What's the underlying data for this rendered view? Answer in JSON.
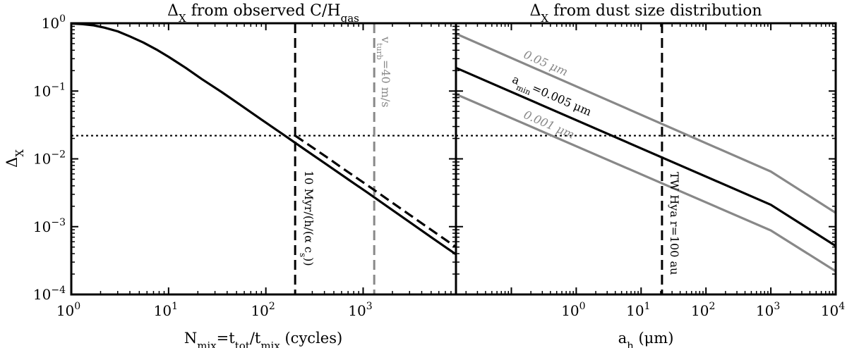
{
  "chart_data": [
    {
      "type": "line",
      "title": {
        "main": "Δ",
        "sub": "X",
        "rest": " from observed C/H",
        "sub2": "gas"
      },
      "xlabel": {
        "base": "N",
        "sub": "mix",
        "mid": "=t",
        "sub2": "tot",
        "mid2": "/t",
        "sub3": "mix",
        "rest": " (cycles)"
      },
      "ylabel": {
        "base": "Δ",
        "sub": "X"
      },
      "xscale": "log",
      "yscale": "log",
      "xlim": [
        1,
        9000
      ],
      "ylim": [
        0.0001,
        1
      ],
      "xticks": [
        1,
        10,
        100,
        1000
      ],
      "xtick_exponents": [
        "0",
        "1",
        "2",
        "3"
      ],
      "yticks": [
        1,
        0.1,
        0.01,
        0.001,
        0.0001
      ],
      "ytick_exponents": [
        "0",
        "−1",
        "−2",
        "−3",
        "−4"
      ],
      "tick_base": "10",
      "series": [
        {
          "style": "solid",
          "color": "#000000",
          "x": [
            1,
            1.3,
            1.7,
            2.2,
            3,
            4,
            5.5,
            7.5,
            10,
            15,
            22,
            35,
            55,
            90,
            150,
            250,
            400,
            700,
            1100,
            1800,
            3000,
            5000,
            9000
          ],
          "y": [
            0.99,
            0.97,
            0.93,
            0.86,
            0.76,
            0.64,
            0.52,
            0.41,
            0.32,
            0.22,
            0.15,
            0.097,
            0.062,
            0.038,
            0.023,
            0.0138,
            0.0087,
            0.005,
            0.0032,
            0.00195,
            0.00117,
            0.0007,
            0.00039
          ]
        },
        {
          "style": "dashed",
          "color": "#000000",
          "x": [
            200,
            400,
            700,
            1100,
            1800,
            3000,
            5000,
            9000
          ],
          "y": [
            0.022,
            0.0112,
            0.0064,
            0.0041,
            0.0025,
            0.0015,
            0.0009,
            0.0005
          ]
        }
      ],
      "hlines": [
        {
          "y": 0.022,
          "style": "dotted",
          "color": "#000000"
        }
      ],
      "vlines": [
        {
          "x": 200,
          "style": "dashed",
          "color": "#000000",
          "label": {
            "base": "10 Myr/(h/(α c",
            "sub": "s",
            "rest": "))"
          }
        },
        {
          "x": 1300,
          "style": "dashed",
          "color": "#888888",
          "label": {
            "base": "v",
            "sub": "turb",
            "rest": "=40 m/s"
          }
        }
      ]
    },
    {
      "type": "line",
      "title": {
        "main": "Δ",
        "sub": "X",
        "rest": " from dust size distribution"
      },
      "xlabel": {
        "base": "a",
        "sub": "h",
        "rest": " (μm)"
      },
      "xscale": "log",
      "yscale": "log",
      "xlim": [
        0.014,
        10000
      ],
      "ylim": [
        0.0001,
        1
      ],
      "xticks": [
        1,
        10,
        100,
        1000,
        10000
      ],
      "xtick_exponents": [
        "0",
        "1",
        "2",
        "3",
        "4"
      ],
      "tick_base": "10",
      "series": [
        {
          "name": "0.05 μm",
          "color": "#888888",
          "x": [
            0.014,
            1000,
            10000
          ],
          "y": [
            0.7,
            0.0065,
            0.0016
          ]
        },
        {
          "name_parts": {
            "base": "a",
            "sub": "min",
            "rest": "=0.005 μm"
          },
          "color": "#000000",
          "x": [
            0.014,
            1000,
            10000
          ],
          "y": [
            0.22,
            0.0021,
            0.00052
          ]
        },
        {
          "name": "0.001 μm",
          "color": "#888888",
          "x": [
            0.014,
            1000,
            10000
          ],
          "y": [
            0.09,
            0.00088,
            0.00022
          ]
        }
      ],
      "hlines": [
        {
          "y": 0.022,
          "style": "dotted",
          "color": "#000000"
        }
      ],
      "vlines": [
        {
          "x": 21,
          "style": "dashed",
          "color": "#000000",
          "label": "TW Hya r=100 au"
        }
      ]
    }
  ]
}
